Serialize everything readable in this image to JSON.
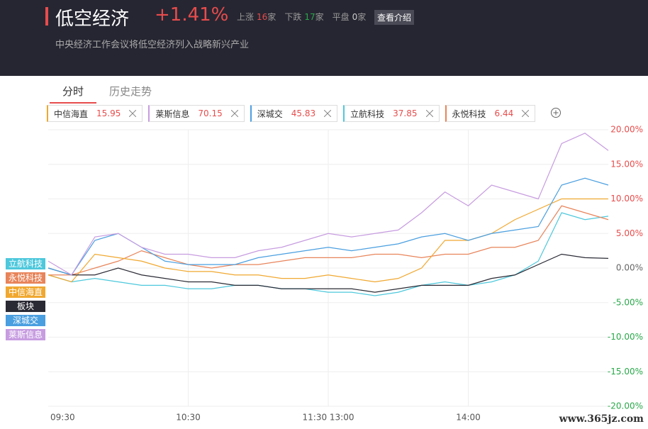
{
  "header": {
    "title": "低空经济",
    "change": "+1.41%",
    "stats": [
      {
        "label": "上涨",
        "count": 16,
        "unit": "家"
      },
      {
        "label": "下跌",
        "count": 17,
        "unit": "家"
      },
      {
        "label": "平盘",
        "count": 0,
        "unit": "家"
      }
    ],
    "button": "查看介绍",
    "subtitle": "中央经济工作会议将低空经济列入战略新兴产业"
  },
  "tabs": [
    "分时",
    "历史走势"
  ],
  "watchlist": [
    {
      "name": "中信海直",
      "price": "15.95",
      "color": "#f0a830"
    },
    {
      "name": "莱斯信息",
      "price": "70.15",
      "color": "#c79ce0"
    },
    {
      "name": "深城交",
      "price": "45.83",
      "color": "#4a9fe0"
    },
    {
      "name": "立航科技",
      "price": "37.85",
      "color": "#4dc8dc"
    },
    {
      "name": "永悦科技",
      "price": "6.44",
      "color": "#e8845a"
    }
  ],
  "chart_data": {
    "type": "line",
    "grid": true,
    "x": [
      0,
      10,
      20,
      30,
      40,
      50,
      60,
      70,
      80,
      90,
      100,
      110,
      120,
      130,
      140,
      150,
      160,
      170,
      180,
      190,
      200,
      210,
      220,
      230,
      240
    ],
    "xlim": [
      0,
      240
    ],
    "xticks": [
      {
        "value": 0,
        "label": "09:30"
      },
      {
        "value": 60,
        "label": "10:30"
      },
      {
        "value": 120,
        "label": "11:30 13:00"
      },
      {
        "value": 180,
        "label": "14:00"
      }
    ],
    "ylim": [
      -20,
      20
    ],
    "yticks": [
      {
        "value": 20,
        "label": "20.00%"
      },
      {
        "value": 15,
        "label": "15.00%"
      },
      {
        "value": 10,
        "label": "10.00%"
      },
      {
        "value": 5,
        "label": "5.00%"
      },
      {
        "value": 0,
        "label": "0.00%"
      },
      {
        "value": -5,
        "label": "-5.00%"
      },
      {
        "value": -10,
        "label": "-10.00%"
      },
      {
        "value": -15,
        "label": "-15.00%"
      },
      {
        "value": -20,
        "label": "-20.00%"
      }
    ],
    "series": [
      {
        "name": "立航科技",
        "color": "#4dc8dc",
        "values": [
          -1,
          -2,
          -1.5,
          -2,
          -2.5,
          -2.5,
          -3,
          -3,
          -2.5,
          -2.5,
          -3,
          -3,
          -3.5,
          -3.5,
          -4,
          -3.5,
          -2.5,
          -2,
          -2.5,
          -2,
          -1,
          1,
          8,
          7,
          7.5
        ]
      },
      {
        "name": "永悦科技",
        "color": "#e8845a",
        "values": [
          -1,
          -1,
          0,
          1,
          2.5,
          1.5,
          0.5,
          0,
          0.5,
          0.5,
          1,
          1.5,
          1.5,
          1.5,
          2,
          2,
          1.5,
          2,
          2,
          3,
          3,
          4,
          9,
          8,
          7
        ]
      },
      {
        "name": "中信海直",
        "color": "#f0a830",
        "values": [
          -1,
          -2,
          2,
          1.5,
          1,
          0,
          -0.5,
          -0.5,
          -1,
          -1,
          -1.5,
          -1.5,
          -1,
          -1.5,
          -2,
          -1.5,
          0,
          4,
          4,
          5,
          7,
          8.5,
          10,
          10,
          10
        ]
      },
      {
        "name": "板块",
        "color": "#2a2a35",
        "values": [
          0,
          -1,
          -1,
          0,
          -1,
          -1.5,
          -2,
          -2,
          -2.5,
          -2.5,
          -3,
          -3,
          -3,
          -3,
          -3.5,
          -3,
          -2.5,
          -2.5,
          -2.5,
          -1.5,
          -1,
          0.5,
          2,
          1.5,
          1.4
        ]
      },
      {
        "name": "深城交",
        "color": "#4a9fe0",
        "values": [
          0,
          -1,
          4,
          5,
          3,
          1,
          0.5,
          0.5,
          0.5,
          1.5,
          2,
          2.5,
          3,
          2.5,
          3,
          3.5,
          4.5,
          5,
          4,
          5,
          5.5,
          6,
          12,
          13,
          12
        ]
      },
      {
        "name": "莱斯信息",
        "color": "#c79ce0",
        "values": [
          1,
          -1,
          4.5,
          5,
          3,
          2,
          2,
          1.5,
          1.5,
          2.5,
          3,
          4,
          5,
          4.5,
          5,
          5.5,
          8,
          11,
          9,
          12,
          11,
          10,
          18,
          19.5,
          17
        ]
      }
    ]
  },
  "watermark": "www.365jz.com"
}
